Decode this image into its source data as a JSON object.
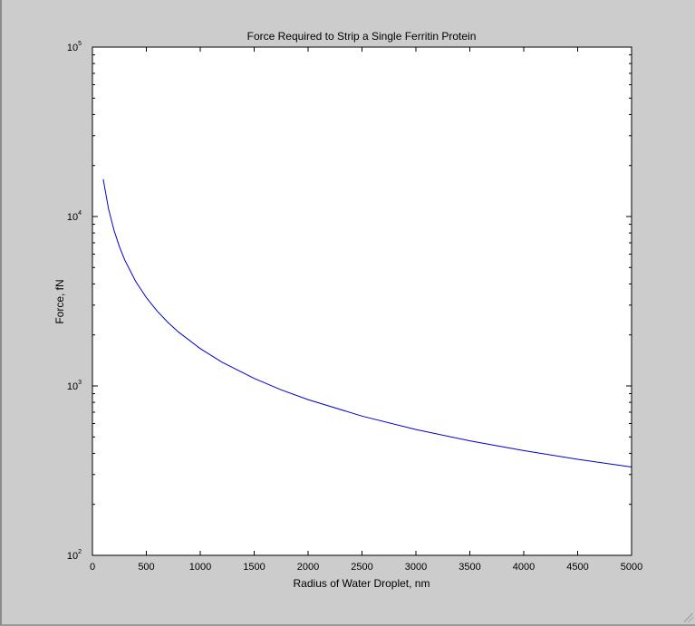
{
  "chart_data": {
    "type": "line",
    "title": "Force Required to Strip a Single Ferritin Protein",
    "xlabel": "Radius of Water Droplet, nm",
    "ylabel": "Force, fN",
    "xlim": [
      0,
      5000
    ],
    "ylim": [
      100,
      100000
    ],
    "yscale": "log",
    "grid": false,
    "x_ticks": [
      0,
      500,
      1000,
      1500,
      2000,
      2500,
      3000,
      3500,
      4000,
      4500,
      5000
    ],
    "y_ticks": [
      {
        "value": 100,
        "base": "10",
        "exp": "2"
      },
      {
        "value": 1000,
        "base": "10",
        "exp": "3"
      },
      {
        "value": 10000,
        "base": "10",
        "exp": "4"
      },
      {
        "value": 100000,
        "base": "10",
        "exp": "5"
      }
    ],
    "series": [
      {
        "color": "#0000cc",
        "x": [
          100,
          150,
          200,
          250,
          300,
          400,
          500,
          600,
          700,
          800,
          1000,
          1200,
          1500,
          1750,
          2000,
          2500,
          3000,
          3500,
          4000,
          4500,
          5000
        ],
        "y": [
          16600,
          11070,
          8300,
          6640,
          5530,
          4150,
          3320,
          2770,
          2370,
          2075,
          1660,
          1383,
          1107,
          949,
          830,
          664,
          553,
          474,
          415,
          369,
          332
        ]
      }
    ]
  }
}
